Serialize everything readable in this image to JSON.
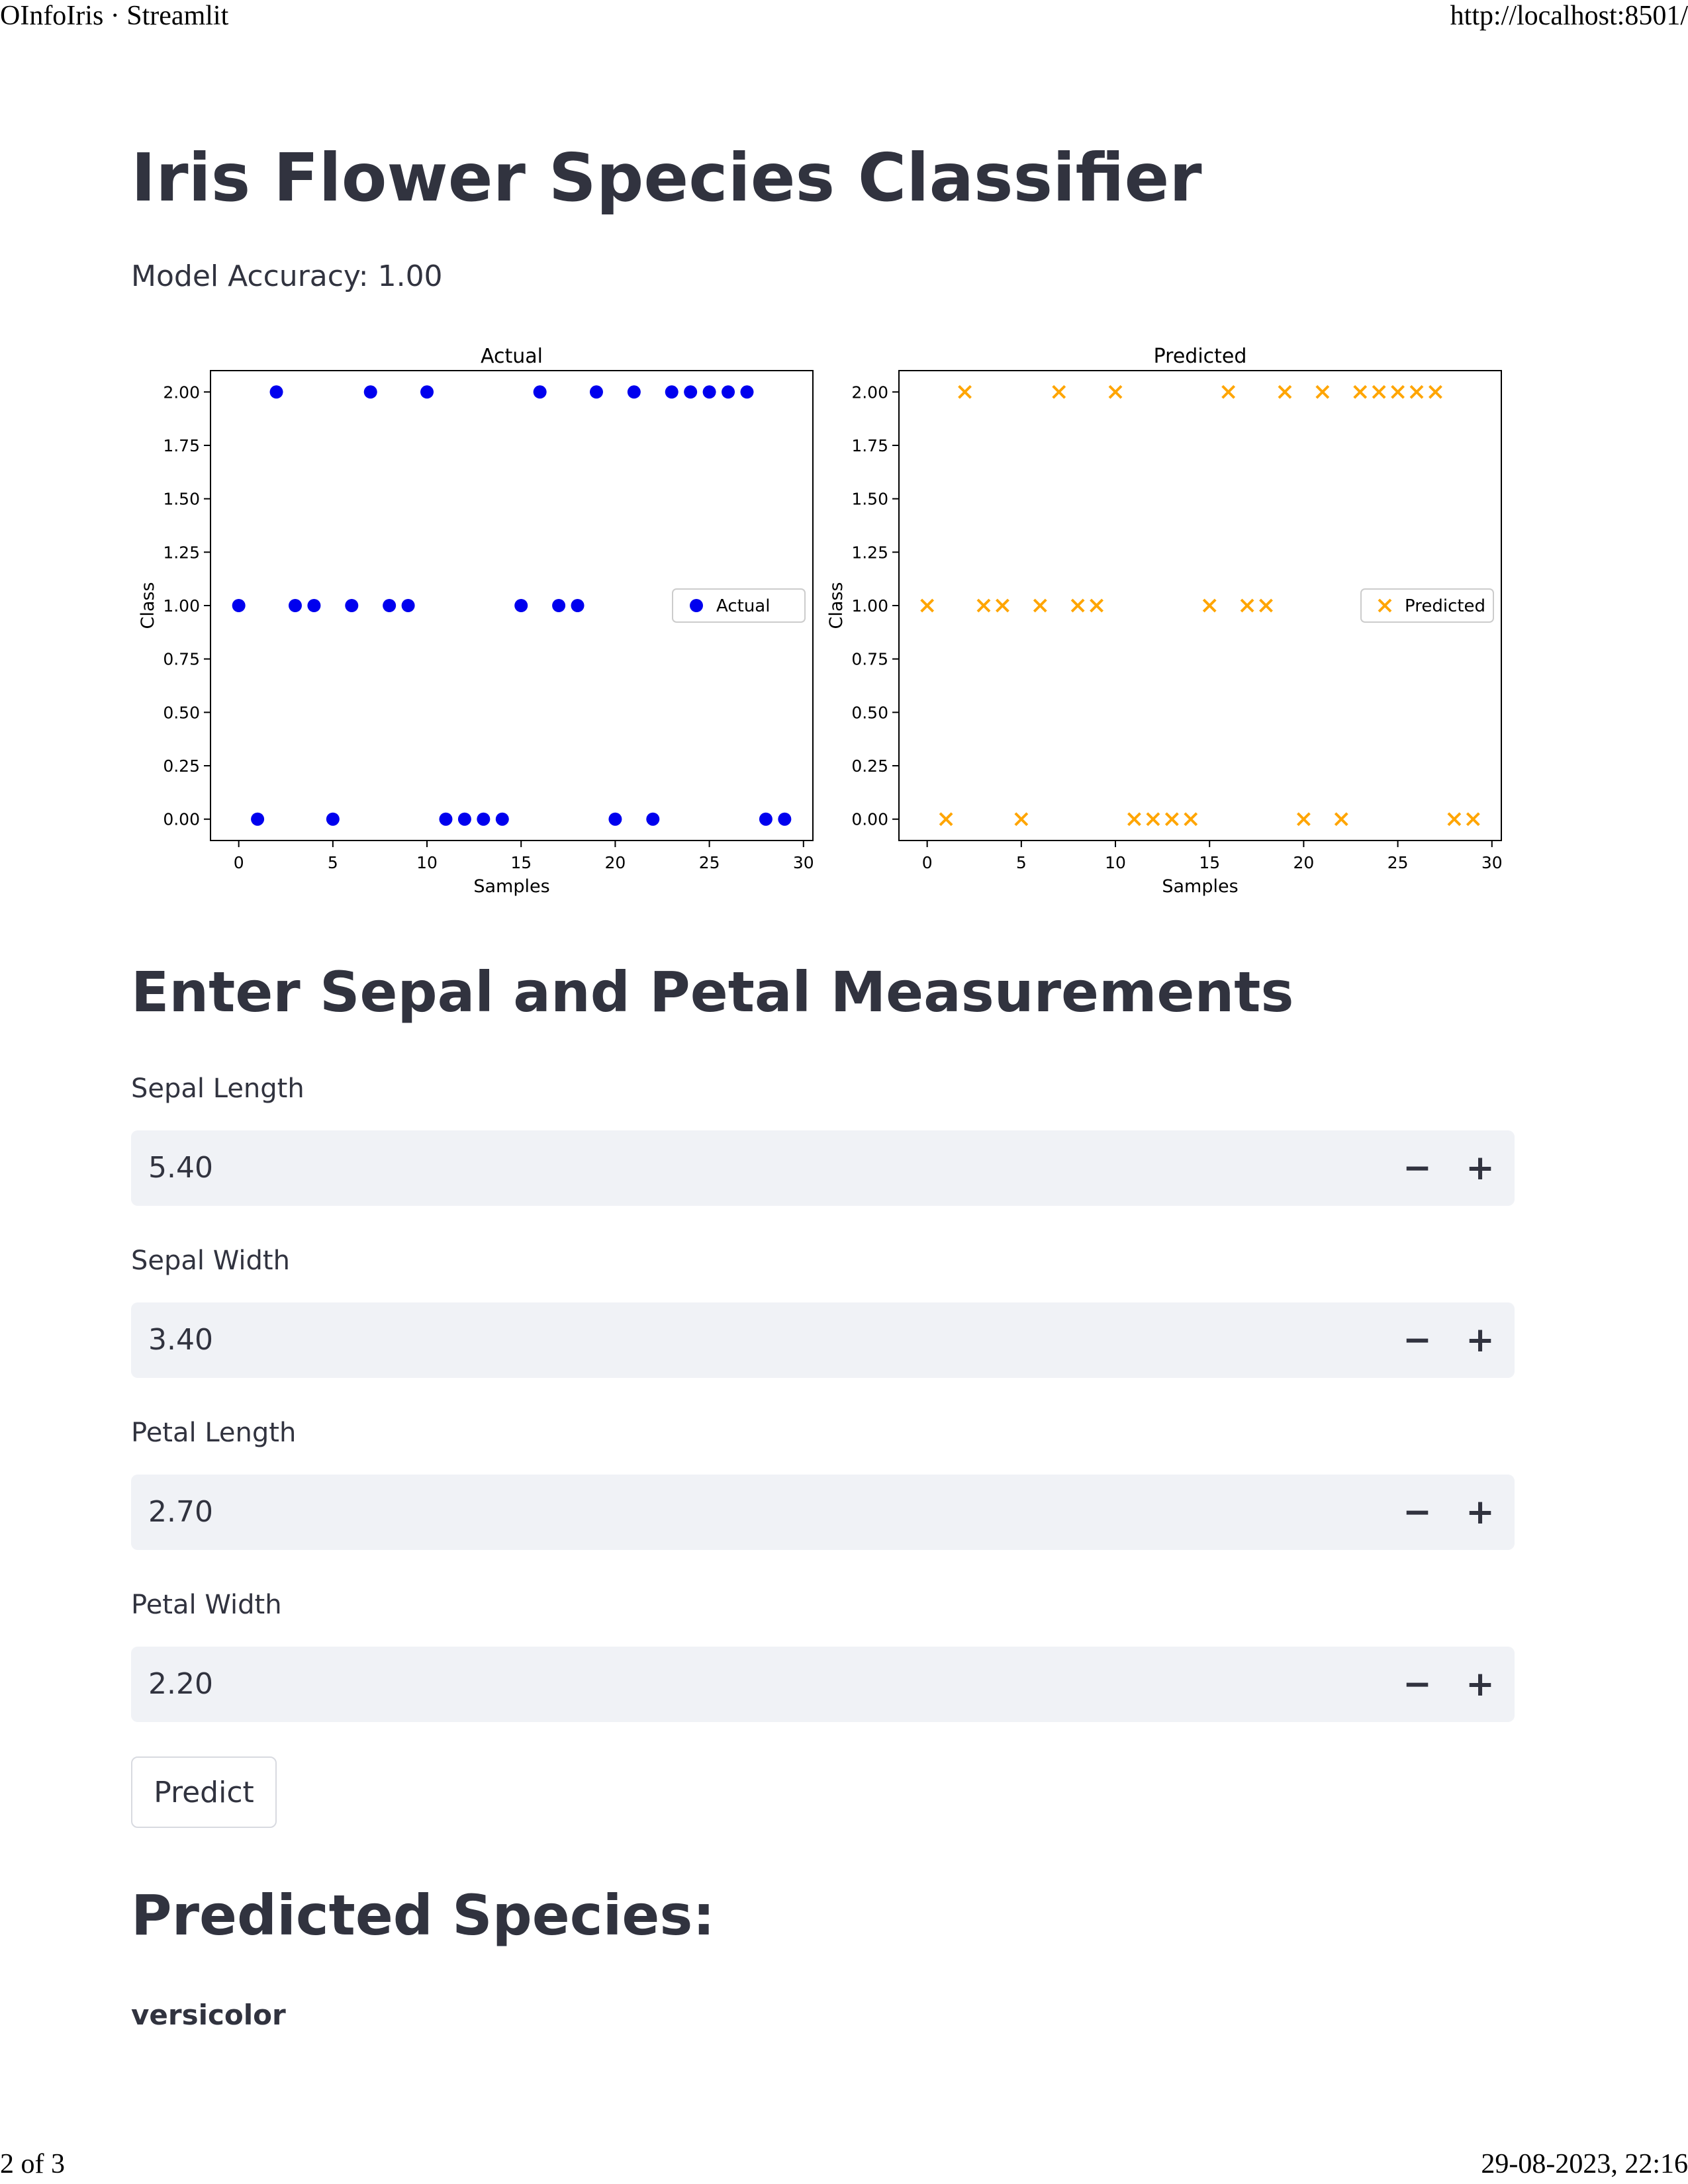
{
  "print": {
    "title": "OInfoIris · Streamlit",
    "url": "http://localhost:8501/",
    "page": "2 of 3",
    "datetime": "29-08-2023, 22:16"
  },
  "app": {
    "title": "Iris Flower Species Classifier",
    "accuracy_text": "Model Accuracy: 1.00"
  },
  "form": {
    "heading": "Enter Sepal and Petal Measurements",
    "fields": [
      {
        "label": "Sepal Length",
        "value": "5.40"
      },
      {
        "label": "Sepal Width",
        "value": "3.40"
      },
      {
        "label": "Petal Length",
        "value": "2.70"
      },
      {
        "label": "Petal Width",
        "value": "2.20"
      }
    ],
    "minus_symbol": "−",
    "plus_symbol": "+",
    "predict_label": "Predict"
  },
  "result": {
    "heading": "Predicted Species:",
    "species": "versicolor"
  },
  "colors": {
    "actual": "#0000ee",
    "predicted": "#ffa500",
    "text": "#31333f",
    "input_bg": "#f0f2f6"
  },
  "chart_data": [
    {
      "type": "scatter",
      "title": "Actual",
      "xlabel": "Samples",
      "ylabel": "Class",
      "xlim": [
        -1.5,
        30.5
      ],
      "ylim": [
        -0.1,
        2.1
      ],
      "xticks": [
        0,
        5,
        10,
        15,
        20,
        25,
        30
      ],
      "yticks": [
        "0.00",
        "0.25",
        "0.50",
        "0.75",
        "1.00",
        "1.25",
        "1.50",
        "1.75",
        "2.00"
      ],
      "legend_position": "center-right",
      "series": [
        {
          "name": "Actual",
          "marker": "circle",
          "color": "#0000ee",
          "x": [
            0,
            1,
            2,
            3,
            4,
            5,
            6,
            7,
            8,
            9,
            10,
            11,
            12,
            13,
            14,
            15,
            16,
            17,
            18,
            19,
            20,
            21,
            22,
            23,
            24,
            25,
            26,
            27,
            28,
            29
          ],
          "y": [
            1,
            0,
            2,
            1,
            1,
            0,
            1,
            2,
            1,
            1,
            2,
            0,
            0,
            0,
            0,
            1,
            2,
            1,
            1,
            2,
            0,
            2,
            0,
            2,
            2,
            2,
            2,
            2,
            0,
            0
          ]
        }
      ]
    },
    {
      "type": "scatter",
      "title": "Predicted",
      "xlabel": "Samples",
      "ylabel": "Class",
      "xlim": [
        -1.5,
        30.5
      ],
      "ylim": [
        -0.1,
        2.1
      ],
      "xticks": [
        0,
        5,
        10,
        15,
        20,
        25,
        30
      ],
      "yticks": [
        "0.00",
        "0.25",
        "0.50",
        "0.75",
        "1.00",
        "1.25",
        "1.50",
        "1.75",
        "2.00"
      ],
      "legend_position": "center-right",
      "series": [
        {
          "name": "Predicted",
          "marker": "x",
          "color": "#ffa500",
          "x": [
            0,
            1,
            2,
            3,
            4,
            5,
            6,
            7,
            8,
            9,
            10,
            11,
            12,
            13,
            14,
            15,
            16,
            17,
            18,
            19,
            20,
            21,
            22,
            23,
            24,
            25,
            26,
            27,
            28,
            29
          ],
          "y": [
            1,
            0,
            2,
            1,
            1,
            0,
            1,
            2,
            1,
            1,
            2,
            0,
            0,
            0,
            0,
            1,
            2,
            1,
            1,
            2,
            0,
            2,
            0,
            2,
            2,
            2,
            2,
            2,
            0,
            0
          ]
        }
      ]
    }
  ]
}
